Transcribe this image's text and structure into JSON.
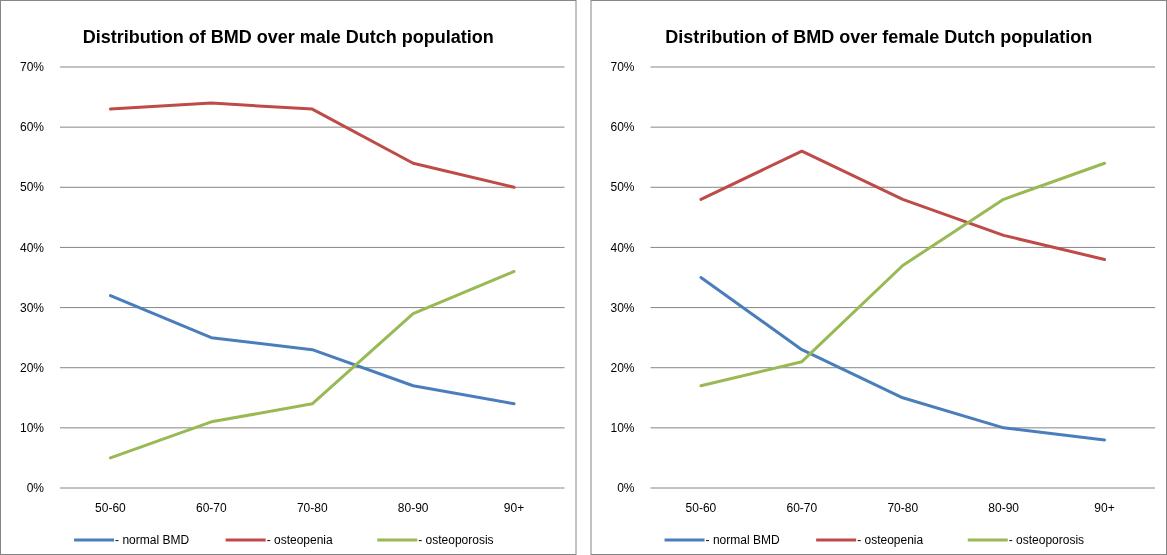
{
  "chart_data": [
    {
      "type": "line",
      "title": "Distribution of BMD over male Dutch population",
      "categories": [
        "50-60",
        "60-70",
        "70-80",
        "80-90",
        "90+"
      ],
      "series": [
        {
          "name": "- normal BMD",
          "color": "#4a7ebb",
          "values": [
            32,
            25,
            23,
            17,
            14
          ]
        },
        {
          "name": "- osteopenia",
          "color": "#be4b48",
          "values": [
            63,
            64,
            63,
            54,
            50
          ]
        },
        {
          "name": "- osteoporosis",
          "color": "#98b954",
          "values": [
            5,
            11,
            14,
            29,
            36
          ]
        }
      ],
      "ylim": [
        0,
        70
      ],
      "yticks": [
        {
          "value": 0,
          "label": "0%"
        },
        {
          "value": 10,
          "label": "10%"
        },
        {
          "value": 20,
          "label": "20%"
        },
        {
          "value": 30,
          "label": "30%"
        },
        {
          "value": 40,
          "label": "40%"
        },
        {
          "value": 50,
          "label": "50%"
        },
        {
          "value": 60,
          "label": "60%"
        },
        {
          "value": 70,
          "label": "70%"
        }
      ],
      "grid": "y",
      "legend": "bottom",
      "marker": "none",
      "line_style": "solid"
    },
    {
      "type": "line",
      "title": "Distribution of BMD over female Dutch population",
      "categories": [
        "50-60",
        "60-70",
        "70-80",
        "80-90",
        "90+"
      ],
      "series": [
        {
          "name": "- normal BMD",
          "color": "#4a7ebb",
          "values": [
            35,
            23,
            15,
            10,
            8
          ]
        },
        {
          "name": "- osteopenia",
          "color": "#be4b48",
          "values": [
            48,
            56,
            48,
            42,
            38
          ]
        },
        {
          "name": "- osteoporosis",
          "color": "#98b954",
          "values": [
            17,
            21,
            37,
            48,
            54
          ]
        }
      ],
      "ylim": [
        0,
        70
      ],
      "yticks": [
        {
          "value": 0,
          "label": "0%"
        },
        {
          "value": 10,
          "label": "10%"
        },
        {
          "value": 20,
          "label": "20%"
        },
        {
          "value": 30,
          "label": "30%"
        },
        {
          "value": 40,
          "label": "40%"
        },
        {
          "value": 50,
          "label": "50%"
        },
        {
          "value": 60,
          "label": "60%"
        },
        {
          "value": 70,
          "label": "70%"
        }
      ],
      "grid": "y",
      "legend": "bottom",
      "marker": "none",
      "line_style": "solid"
    }
  ]
}
